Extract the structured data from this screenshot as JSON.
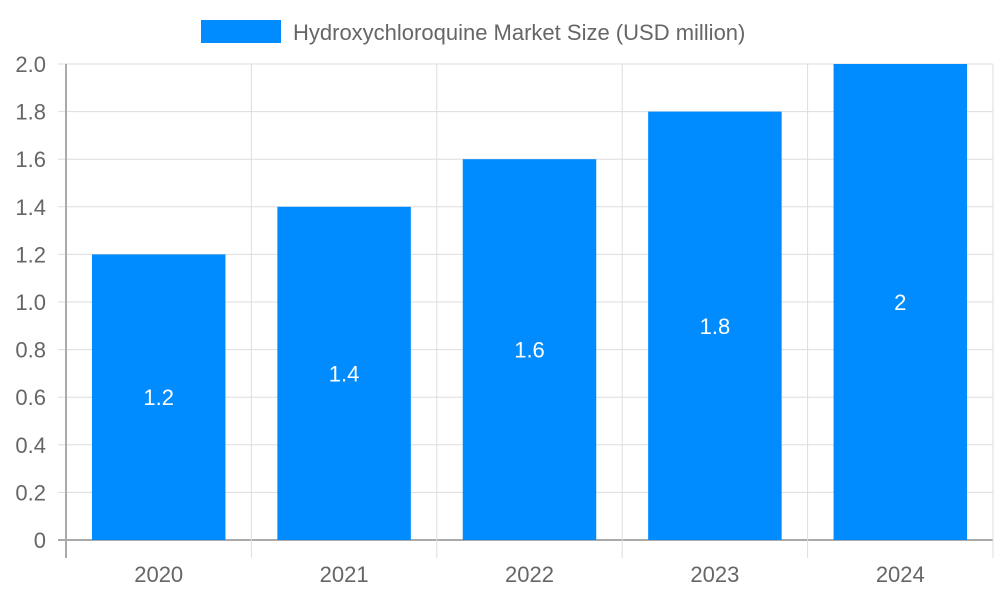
{
  "chart_data": {
    "type": "bar",
    "categories": [
      "2020",
      "2021",
      "2022",
      "2023",
      "2024"
    ],
    "series": [
      {
        "name": "Hydroxychloroquine Market Size (USD million)",
        "values": [
          1.2,
          1.4,
          1.6,
          1.8,
          2
        ],
        "color": "#008CFF"
      }
    ],
    "data_labels": [
      "1.2",
      "1.4",
      "1.6",
      "1.8",
      "2"
    ],
    "ylim": [
      0,
      2.0
    ],
    "yticks": [
      "0",
      "0.2",
      "0.4",
      "0.6",
      "0.8",
      "1.0",
      "1.2",
      "1.4",
      "1.6",
      "1.8",
      "2.0"
    ],
    "grid": true,
    "legend_position": "top",
    "title": "",
    "xlabel": "",
    "ylabel": ""
  }
}
